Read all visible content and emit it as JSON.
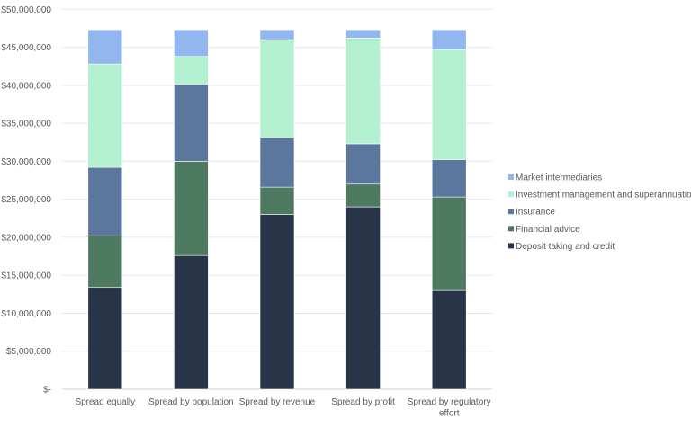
{
  "chart_data": {
    "type": "bar",
    "stacked": true,
    "title": "",
    "xlabel": "",
    "ylabel": "",
    "ylim": [
      0,
      50000000
    ],
    "ytick_step": 5000000,
    "ytick_labels": [
      "$-",
      "$5,000,000",
      "$10,000,000",
      "$15,000,000",
      "$20,000,000",
      "$25,000,000",
      "$30,000,000",
      "$35,000,000",
      "$40,000,000",
      "$45,000,000",
      "$50,000,000"
    ],
    "grid": true,
    "legend_placement": "right",
    "categories": [
      [
        "Spread equally"
      ],
      [
        "Spread by population"
      ],
      [
        "Spread by revenue"
      ],
      [
        "Spread by profit"
      ],
      [
        "Spread by regulatory",
        "effort"
      ]
    ],
    "series": [
      {
        "name": "Deposit taking and credit",
        "color": "#283548",
        "values": [
          13400000,
          17600000,
          23000000,
          24000000,
          13000000
        ]
      },
      {
        "name": "Financial advice",
        "color": "#4e7a62",
        "values": [
          6800000,
          12400000,
          3600000,
          3000000,
          12300000
        ]
      },
      {
        "name": "Insurance",
        "color": "#5b779e",
        "values": [
          9000000,
          10100000,
          6500000,
          5300000,
          4900000
        ]
      },
      {
        "name": "Investment management and superannuation",
        "color": "#b3f0d0",
        "values": [
          13600000,
          3700000,
          12900000,
          13900000,
          14500000
        ]
      },
      {
        "name": "Market intermediaries",
        "color": "#92b7ee",
        "values": [
          4500000,
          3500000,
          1300000,
          1100000,
          2600000
        ]
      }
    ]
  }
}
